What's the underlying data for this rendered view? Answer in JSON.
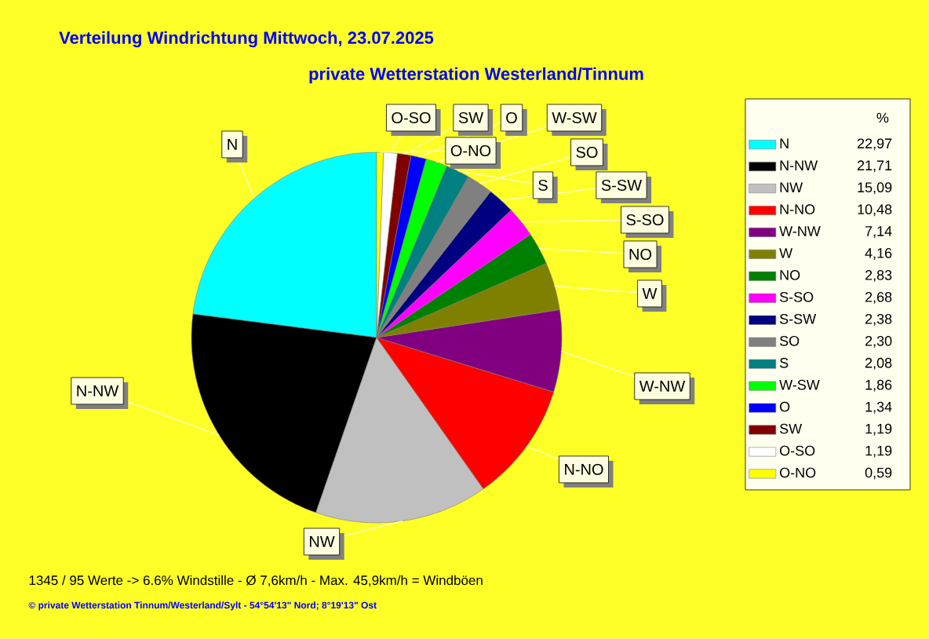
{
  "chart_data": {
    "type": "pie",
    "title": "Verteilung Windrichtung   Mittwoch, 23.07.2025",
    "subtitle": "private Wetterstation Westerland/Tinnum",
    "categories": [
      "N",
      "N-NW",
      "NW",
      "N-NO",
      "W-NW",
      "W",
      "NO",
      "S-SO",
      "S-SW",
      "SO",
      "S",
      "W-SW",
      "O",
      "SW",
      "O-SO",
      "O-NO"
    ],
    "values": [
      22.97,
      21.71,
      15.09,
      10.48,
      7.14,
      4.16,
      2.83,
      2.68,
      2.38,
      2.3,
      2.08,
      1.86,
      1.34,
      1.19,
      1.19,
      0.59
    ],
    "value_labels": [
      "22,97",
      "21,71",
      "15,09",
      "10,48",
      "7,14",
      "4,16",
      "2,83",
      "2,68",
      "2,38",
      "2,30",
      "2,08",
      "1,86",
      "1,34",
      "1,19",
      "1,19",
      "0,59"
    ],
    "colors": [
      "#00ffff",
      "#000000",
      "#c0c0c0",
      "#ff0000",
      "#800080",
      "#808000",
      "#008000",
      "#ff00ff",
      "#000080",
      "#808080",
      "#008080",
      "#00ff00",
      "#0000ff",
      "#800000",
      "#ffffff",
      "#ffff00"
    ],
    "legend": "right",
    "legend_title": "%",
    "annotations": [
      "1345 / 95 Werte  -> 6.6% Windstille   -   Ø 7,6km/h  -  Max. 45,9km/h = Windböen",
      "© private Wetterstation Tinnum/Westerland/Sylt  -  54°54'13\" Nord; 8°19'13\" Ost"
    ]
  }
}
